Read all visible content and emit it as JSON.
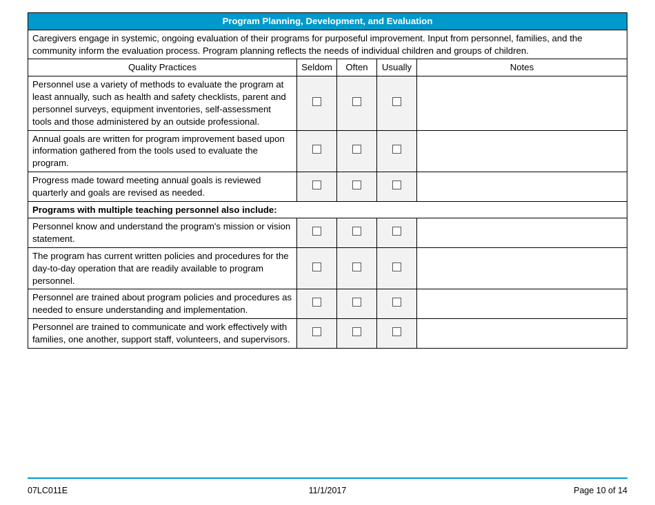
{
  "title": "Program Planning, Development, and Evaluation",
  "intro": "Caregivers engage in systemic, ongoing evaluation of their programs for purposeful improvement.  Input from personnel, families, and the community inform the evaluation process.  Program planning reflects the needs of individual children and groups of children.",
  "columns": {
    "practices": "Quality Practices",
    "seldom": "Seldom",
    "often": "Often",
    "usually": "Usually",
    "notes": "Notes"
  },
  "rows1": [
    "Personnel use a variety of methods to evaluate the program at least annually, such as health and safety checklists, parent and personnel surveys, equipment inventories, self-assessment tools and those administered by an outside professional.",
    "Annual goals are written for program improvement based upon information gathered from the tools used to evaluate the program.",
    "Progress made toward meeting annual goals is reviewed quarterly and goals are revised as needed."
  ],
  "section_heading": "Programs with multiple teaching personnel also include:",
  "rows2": [
    "Personnel know and understand the program's mission or vision statement.",
    "The program has current written policies and procedures for the day-to-day operation that are readily available to program personnel.",
    "Personnel are trained about program policies and procedures as needed to ensure understanding and implementation.",
    "Personnel are trained to communicate and work effectively with families, one another, support staff, volunteers, and supervisors."
  ],
  "footer": {
    "form_id": "07LC011E",
    "date": "11/1/2017",
    "page": "Page 10 of 14"
  },
  "colors": {
    "header_bg": "#0099cc",
    "check_bg": "#f2f2f2",
    "rule": "#0099cc"
  }
}
